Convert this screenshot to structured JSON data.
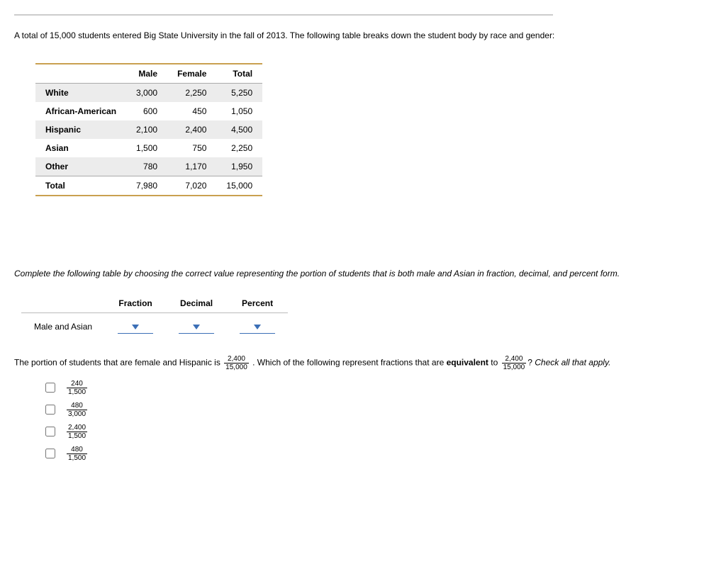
{
  "intro": "A total of 15,000 students entered Big State University in the fall of 2013. The following table breaks down the student body by race and gender:",
  "table1": {
    "headers": {
      "c1": "Male",
      "c2": "Female",
      "c3": "Total"
    },
    "rows": [
      {
        "label": "White",
        "male": "3,000",
        "female": "2,250",
        "total": "5,250"
      },
      {
        "label": "African-American",
        "male": "600",
        "female": "450",
        "total": "1,050"
      },
      {
        "label": "Hispanic",
        "male": "2,100",
        "female": "2,400",
        "total": "4,500"
      },
      {
        "label": "Asian",
        "male": "1,500",
        "female": "750",
        "total": "2,250"
      },
      {
        "label": "Other",
        "male": "780",
        "female": "1,170",
        "total": "1,950"
      }
    ],
    "totals": {
      "label": "Total",
      "male": "7,980",
      "female": "7,020",
      "total": "15,000"
    }
  },
  "instruction": "Complete the following table by choosing the correct value representing the portion of students that is both male and Asian in fraction, decimal, and percent form.",
  "table2": {
    "headers": {
      "c1": "Fraction",
      "c2": "Decimal",
      "c3": "Percent"
    },
    "rowLabel": "Male and Asian"
  },
  "q2": {
    "pre": "The portion of students that are female and Hispanic is ",
    "frac1": {
      "num": "2,400",
      "den": "15,000"
    },
    "mid": ". Which of the following represent fractions that are ",
    "bold": "equivalent",
    "mid2": " to ",
    "frac2": {
      "num": "2,400",
      "den": "15,000"
    },
    "post": "? ",
    "italic": "Check all that apply."
  },
  "options": [
    {
      "num": "240",
      "den": "1,500"
    },
    {
      "num": "480",
      "den": "3,000"
    },
    {
      "num": "2,400",
      "den": "1,500"
    },
    {
      "num": "480",
      "den": "1,500"
    }
  ]
}
